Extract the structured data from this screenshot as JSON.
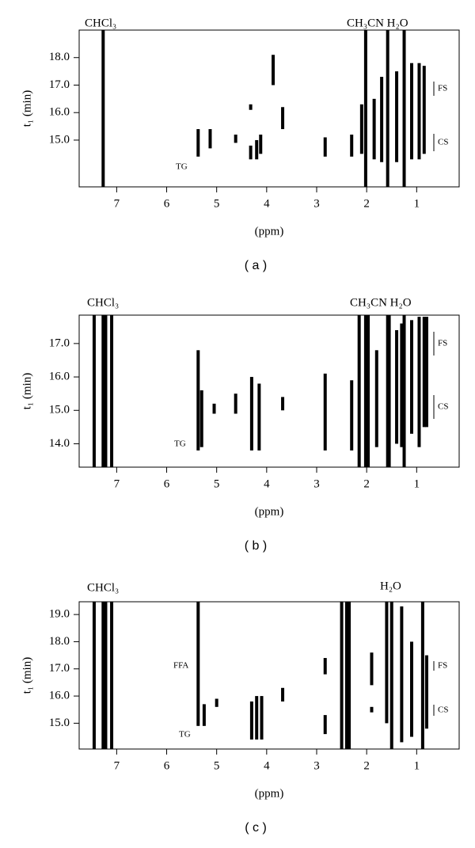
{
  "chart_data": [
    {
      "type": "contour",
      "labels": [
        "CHCl₃",
        "CH₃CN H₂O"
      ],
      "annotations": [
        "TG",
        "FS",
        "CS"
      ],
      "xlabel": "(ppm)",
      "ylabel": "t₁ (min)",
      "caption": "( a )",
      "xlim": [
        7.75,
        0.15
      ],
      "ylim": [
        13.3,
        19.0
      ],
      "xticks": [
        7,
        6,
        5,
        4,
        3,
        2,
        1
      ],
      "yticks": [
        {
          "value": 15,
          "label": "15.0"
        },
        {
          "value": 16,
          "label": "16.0"
        },
        {
          "value": 17,
          "label": "17.0"
        },
        {
          "value": 18,
          "label": "18.0"
        }
      ],
      "signals": {
        "x": [
          7.27,
          5.37,
          5.13,
          4.62,
          4.32,
          4.32,
          4.2,
          4.12,
          3.87,
          3.68,
          2.83,
          2.3,
          2.02,
          1.58,
          1.25,
          2.1,
          1.85,
          1.7,
          1.4,
          1.1,
          0.95,
          0.85
        ],
        "ylow": [
          13.3,
          14.4,
          14.7,
          14.9,
          14.3,
          16.1,
          14.3,
          14.5,
          17.0,
          15.4,
          14.4,
          14.4,
          13.3,
          13.3,
          13.3,
          14.5,
          14.3,
          14.2,
          14.2,
          14.3,
          14.3,
          14.5
        ],
        "yhigh": [
          19.0,
          15.4,
          15.4,
          15.2,
          14.8,
          16.3,
          15.0,
          15.2,
          18.1,
          16.2,
          15.1,
          15.2,
          19.0,
          19.0,
          19.0,
          16.3,
          16.5,
          17.3,
          17.5,
          17.8,
          17.8,
          17.7
        ]
      }
    },
    {
      "type": "contour",
      "labels": [
        "CHCl₃",
        "CH₃CN H₂O"
      ],
      "annotations": [
        "TG",
        "FS",
        "CS"
      ],
      "xlabel": "(ppm)",
      "ylabel": "t₁ (min)",
      "caption": "( b )",
      "xlim": [
        7.75,
        0.15
      ],
      "ylim": [
        13.3,
        17.85
      ],
      "xticks": [
        7,
        6,
        5,
        4,
        3,
        2,
        1
      ],
      "yticks": [
        {
          "value": 14,
          "label": "14.0"
        },
        {
          "value": 15,
          "label": "15.0"
        },
        {
          "value": 16,
          "label": "16.0"
        },
        {
          "value": 17,
          "label": "17.0"
        }
      ],
      "signals": {
        "x": [
          7.45,
          7.27,
          7.22,
          7.1,
          5.37,
          5.3,
          5.05,
          4.62,
          4.3,
          4.15,
          3.68,
          2.83,
          2.3,
          2.15,
          2.02,
          1.97,
          1.58,
          1.55,
          1.25,
          1.3,
          1.1,
          0.95,
          0.85,
          0.8,
          1.8,
          1.4
        ],
        "ylow": [
          13.3,
          13.3,
          13.3,
          13.3,
          13.8,
          13.9,
          14.9,
          14.9,
          13.8,
          13.8,
          15.0,
          13.8,
          13.8,
          13.3,
          13.3,
          13.3,
          13.3,
          13.3,
          13.3,
          13.9,
          14.3,
          13.9,
          14.5,
          14.5,
          13.9,
          14.0
        ],
        "yhigh": [
          17.85,
          17.85,
          17.85,
          17.85,
          16.8,
          15.6,
          15.2,
          15.5,
          16.0,
          15.8,
          15.4,
          16.1,
          15.9,
          17.85,
          17.85,
          17.85,
          17.85,
          17.85,
          17.85,
          17.6,
          17.7,
          17.8,
          17.8,
          17.8,
          16.8,
          17.4
        ]
      }
    },
    {
      "type": "contour",
      "labels": [
        "CHCl₃",
        "H₂O"
      ],
      "annotations": [
        "FFA",
        "TG",
        "FS",
        "CS"
      ],
      "xlabel": "(ppm)",
      "ylabel": "t₁ (min)",
      "caption": "( c )",
      "xlim": [
        7.75,
        0.15
      ],
      "ylim": [
        14.05,
        19.47
      ],
      "xticks": [
        7,
        6,
        5,
        4,
        3,
        2,
        1
      ],
      "yticks": [
        {
          "value": 15,
          "label": "15.0"
        },
        {
          "value": 16,
          "label": "16.0"
        },
        {
          "value": 17,
          "label": "17.0"
        },
        {
          "value": 18,
          "label": "18.0"
        },
        {
          "value": 19,
          "label": "19.0"
        }
      ],
      "signals": {
        "x": [
          7.45,
          7.27,
          7.22,
          7.1,
          5.37,
          5.25,
          5.0,
          4.3,
          4.2,
          4.1,
          3.68,
          2.83,
          2.83,
          2.5,
          2.4,
          2.35,
          1.9,
          1.9,
          1.6,
          1.5,
          1.3,
          1.1,
          0.88,
          0.8
        ],
        "ylow": [
          14.05,
          14.05,
          14.05,
          14.05,
          14.9,
          14.9,
          15.6,
          14.4,
          14.4,
          14.4,
          15.8,
          14.6,
          16.8,
          14.05,
          14.05,
          14.05,
          15.4,
          16.4,
          15.0,
          14.05,
          14.3,
          14.5,
          14.05,
          14.8
        ],
        "yhigh": [
          19.47,
          19.47,
          19.47,
          19.47,
          19.47,
          15.7,
          15.9,
          15.8,
          16.0,
          16.0,
          16.3,
          15.3,
          17.4,
          19.47,
          19.47,
          19.47,
          15.6,
          17.6,
          19.47,
          19.47,
          19.3,
          18.0,
          19.47,
          17.5
        ]
      }
    }
  ]
}
